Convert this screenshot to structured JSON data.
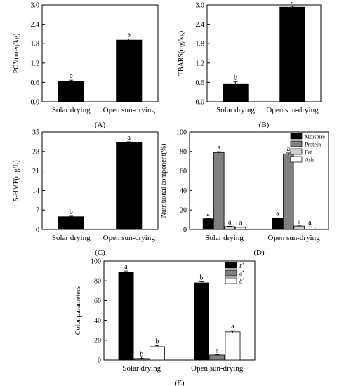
{
  "chart_data": [
    {
      "id": "A",
      "type": "bar",
      "panel_label": "(A)",
      "ylabel": "POV(meq/kg)",
      "categories": [
        "Solar drying",
        "Open sun-drying"
      ],
      "values": [
        0.64,
        1.91
      ],
      "errors": [
        0.03,
        0.04
      ],
      "letters": [
        "b",
        "a"
      ],
      "ylim": [
        0,
        3.0
      ],
      "yticks": [
        0,
        0.6,
        1.2,
        1.8,
        2.4,
        3.0
      ],
      "ytick_labels": [
        "0.0",
        "0.6",
        "1.2",
        "1.8",
        "2.4",
        "3.0"
      ],
      "color": "#000000"
    },
    {
      "id": "B",
      "type": "bar",
      "panel_label": "(B)",
      "ylabel": "TBARS(mg/kg)",
      "categories": [
        "Solar drying",
        "Open sun-drying"
      ],
      "values": [
        0.56,
        2.93
      ],
      "errors": [
        0.06,
        0.03
      ],
      "letters": [
        "b",
        "a"
      ],
      "ylim": [
        0,
        3.0
      ],
      "yticks": [
        0,
        0.6,
        1.2,
        1.8,
        2.4,
        3.0
      ],
      "ytick_labels": [
        "0.0",
        "0.6",
        "1.2",
        "1.8",
        "2.4",
        "3.0"
      ],
      "color": "#000000"
    },
    {
      "id": "C",
      "type": "bar",
      "panel_label": "(C)",
      "ylabel": "5-HMF(mg/L)",
      "categories": [
        "Solar drying",
        "Open sun-drying"
      ],
      "values": [
        4.6,
        31.2
      ],
      "errors": [
        0.2,
        0.3
      ],
      "letters": [
        "b",
        "a"
      ],
      "ylim": [
        0,
        35
      ],
      "yticks": [
        0,
        7,
        14,
        21,
        28,
        35
      ],
      "ytick_labels": [
        "0",
        "7",
        "14",
        "21",
        "28",
        "35"
      ],
      "color": "#000000"
    },
    {
      "id": "D",
      "type": "bar",
      "panel_label": "(D)",
      "ylabel": "Nutritional component(%)",
      "categories": [
        "Solar drying",
        "Open sun-drying"
      ],
      "series": [
        {
          "name": "Moisture",
          "values": [
            11.0,
            11.5
          ],
          "errors": [
            0.5,
            0.5
          ],
          "letters": [
            "a",
            "a"
          ],
          "color": "#000000"
        },
        {
          "name": "Protein",
          "values": [
            79.0,
            77.5
          ],
          "errors": [
            0.8,
            1.0
          ],
          "letters": [
            "a",
            "a"
          ],
          "color": "#808080"
        },
        {
          "name": "Fat",
          "values": [
            3.0,
            3.5
          ],
          "errors": [
            0.3,
            0.3
          ],
          "letters": [
            "a",
            "a"
          ],
          "color": "#d0d0d0"
        },
        {
          "name": "Ash",
          "values": [
            2.2,
            2.5
          ],
          "errors": [
            0.2,
            0.2
          ],
          "letters": [
            "a",
            "a"
          ],
          "color": "#ffffff"
        }
      ],
      "ylim": [
        0,
        100
      ],
      "yticks": [
        0,
        20,
        40,
        60,
        80,
        100
      ],
      "ytick_labels": [
        "0",
        "20",
        "40",
        "60",
        "80",
        "100"
      ],
      "legend_position": "top-right"
    },
    {
      "id": "E",
      "type": "bar",
      "panel_label": "(E)",
      "ylabel": "Color parameters",
      "categories": [
        "Solar drying",
        "Open sun-drying"
      ],
      "series": [
        {
          "name": "L*",
          "values": [
            89.0,
            78.0
          ],
          "errors": [
            1.0,
            1.0
          ],
          "letters": [
            "a",
            "b"
          ],
          "color": "#000000"
        },
        {
          "name": "a*",
          "values": [
            1.5,
            5.0
          ],
          "errors": [
            0.3,
            0.4
          ],
          "letters": [
            "b",
            "a"
          ],
          "color": "#808080"
        },
        {
          "name": "b*",
          "values": [
            13.5,
            28.5
          ],
          "errors": [
            1.0,
            1.2
          ],
          "letters": [
            "b",
            "a"
          ],
          "color": "#ffffff"
        }
      ],
      "ylim": [
        0,
        100
      ],
      "yticks": [
        0,
        20,
        40,
        60,
        80,
        100
      ],
      "ytick_labels": [
        "0",
        "20",
        "40",
        "60",
        "80",
        "100"
      ],
      "legend_position": "top-right"
    }
  ]
}
